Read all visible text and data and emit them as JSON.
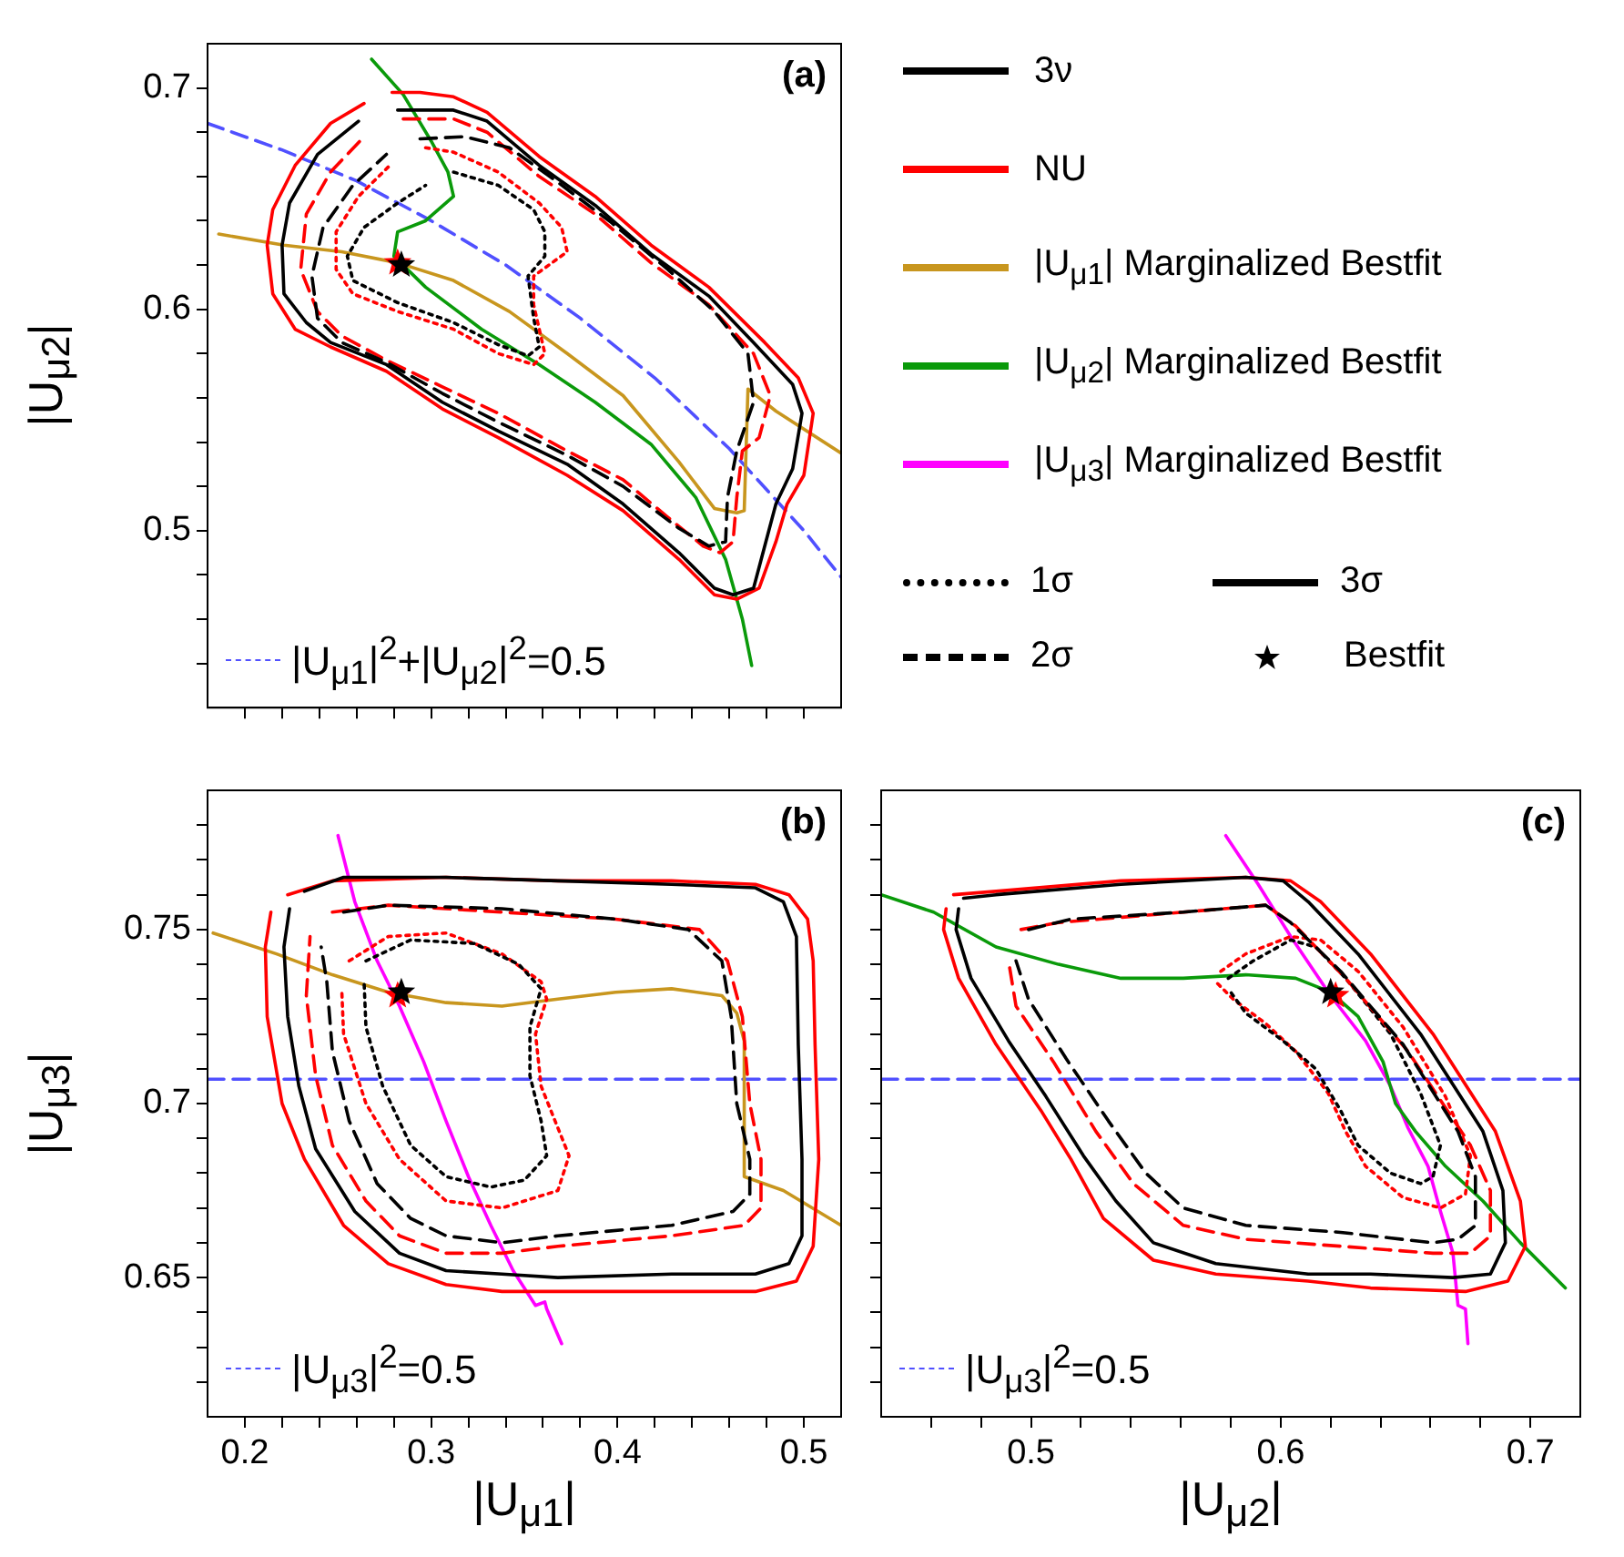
{
  "chart_data": [
    {
      "type": "line",
      "title": "(a)",
      "ylabel": "|U$_{μ2}$|",
      "xlim": [
        0.18,
        0.52
      ],
      "ylim": [
        0.42,
        0.72
      ],
      "xticks": [
        0.2,
        {
          "value": 0.22,
          "label": null
        },
        {
          "value": 0.24,
          "label": null
        },
        {
          "value": 0.26,
          "label": null
        },
        {
          "value": 0.28,
          "label": null
        },
        0.3,
        {
          "value": 0.32,
          "label": null
        },
        {
          "value": 0.34,
          "label": null
        },
        {
          "value": 0.36,
          "label": null
        },
        {
          "value": 0.38,
          "label": null
        },
        0.4,
        {
          "value": 0.42,
          "label": null
        },
        {
          "value": 0.44,
          "label": null
        },
        {
          "value": 0.46,
          "label": null
        },
        {
          "value": 0.48,
          "label": null
        },
        0.5
      ],
      "yticks": [
        {
          "value": 0.44,
          "label": null
        },
        {
          "value": 0.46,
          "label": null
        },
        {
          "value": 0.48,
          "label": null
        },
        0.5,
        {
          "value": 0.52,
          "label": null
        },
        {
          "value": 0.54,
          "label": null
        },
        {
          "value": 0.56,
          "label": null
        },
        {
          "value": 0.58,
          "label": null
        },
        0.6,
        {
          "value": 0.62,
          "label": null
        },
        {
          "value": 0.64,
          "label": null
        },
        {
          "value": 0.66,
          "label": null
        },
        {
          "value": 0.68,
          "label": null
        },
        0.7
      ],
      "tick_labels": "y",
      "legend": "right",
      "annotations": [
        "|U$_{μ1}$|$^{2}$+|U$_{μ2}$|$^{2}$=0.5",
        "1σ",
        "3σ",
        "2σ",
        "Bestfit"
      ],
      "series": [
        {
          "name": "3ν",
          "color": "#000000",
          "line_style": "solid",
          "x": [
            0.282,
            0.312,
            0.33,
            0.358,
            0.388,
            0.418,
            0.449,
            0.473,
            0.494,
            0.499,
            0.494,
            0.485,
            0.479,
            0.473,
            0.462,
            0.452,
            0.433,
            0.403,
            0.373,
            0.336,
            0.306,
            0.276,
            0.246,
            0.233,
            0.221,
            0.22,
            0.224,
            0.239,
            0.261
          ],
          "values": [
            0.69,
            0.69,
            0.685,
            0.665,
            0.647,
            0.625,
            0.606,
            0.585,
            0.566,
            0.553,
            0.528,
            0.512,
            0.493,
            0.474,
            0.471,
            0.474,
            0.49,
            0.512,
            0.53,
            0.545,
            0.558,
            0.575,
            0.585,
            0.594,
            0.607,
            0.629,
            0.648,
            0.67,
            0.685
          ]
        },
        {
          "name": "NU",
          "color": "#ff0000",
          "line_style": "solid",
          "x": [
            0.279,
            0.294,
            0.312,
            0.33,
            0.358,
            0.388,
            0.418,
            0.449,
            0.479,
            0.497,
            0.505,
            0.5,
            0.491,
            0.485,
            0.476,
            0.464,
            0.452,
            0.433,
            0.403,
            0.373,
            0.336,
            0.306,
            0.276,
            0.246,
            0.227,
            0.215,
            0.212,
            0.215,
            0.227,
            0.246,
            0.264
          ],
          "values": [
            0.698,
            0.698,
            0.696,
            0.689,
            0.669,
            0.651,
            0.629,
            0.61,
            0.585,
            0.569,
            0.553,
            0.525,
            0.512,
            0.495,
            0.474,
            0.469,
            0.471,
            0.487,
            0.509,
            0.525,
            0.542,
            0.555,
            0.572,
            0.583,
            0.591,
            0.607,
            0.629,
            0.645,
            0.665,
            0.684,
            0.693
          ]
        },
        {
          "color": "#000000",
          "line_style": "dashed",
          "x": [
            0.294,
            0.318,
            0.342,
            0.367,
            0.397,
            0.427,
            0.452,
            0.47,
            0.473,
            0.464,
            0.459,
            0.458,
            0.449,
            0.433,
            0.403,
            0.373,
            0.336,
            0.306,
            0.276,
            0.252,
            0.239,
            0.236,
            0.242,
            0.258,
            0.276
          ],
          "values": [
            0.677,
            0.678,
            0.673,
            0.658,
            0.639,
            0.618,
            0.599,
            0.58,
            0.558,
            0.536,
            0.515,
            0.495,
            0.493,
            0.501,
            0.52,
            0.534,
            0.549,
            0.562,
            0.576,
            0.585,
            0.596,
            0.615,
            0.637,
            0.656,
            0.67
          ]
        },
        {
          "color": "#ff0000",
          "line_style": "dashed",
          "x": [
            0.285,
            0.312,
            0.33,
            0.358,
            0.388,
            0.418,
            0.449,
            0.473,
            0.482,
            0.476,
            0.467,
            0.464,
            0.462,
            0.455,
            0.446,
            0.427,
            0.403,
            0.373,
            0.336,
            0.306,
            0.276,
            0.252,
            0.239,
            0.23,
            0.233,
            0.246,
            0.264
          ],
          "values": [
            0.686,
            0.686,
            0.68,
            0.66,
            0.643,
            0.621,
            0.602,
            0.58,
            0.561,
            0.542,
            0.536,
            0.515,
            0.495,
            0.49,
            0.493,
            0.506,
            0.523,
            0.536,
            0.553,
            0.565,
            0.577,
            0.588,
            0.599,
            0.618,
            0.643,
            0.662,
            0.678
          ]
        },
        {
          "color": "#000000",
          "line_style": "dotted",
          "x": [
            0.312,
            0.336,
            0.355,
            0.361,
            0.361,
            0.352,
            0.355,
            0.358,
            0.352,
            0.336,
            0.312,
            0.282,
            0.258,
            0.255,
            0.264,
            0.282,
            0.297
          ],
          "values": [
            0.662,
            0.656,
            0.645,
            0.635,
            0.624,
            0.615,
            0.596,
            0.583,
            0.579,
            0.584,
            0.594,
            0.603,
            0.613,
            0.624,
            0.637,
            0.648,
            0.656
          ]
        },
        {
          "color": "#ff0000",
          "line_style": "dotted",
          "x": [
            0.297,
            0.312,
            0.336,
            0.358,
            0.37,
            0.373,
            0.355,
            0.355,
            0.361,
            0.355,
            0.336,
            0.312,
            0.282,
            0.258,
            0.249,
            0.249,
            0.261,
            0.279
          ],
          "values": [
            0.673,
            0.671,
            0.662,
            0.648,
            0.637,
            0.626,
            0.615,
            0.602,
            0.58,
            0.575,
            0.58,
            0.591,
            0.599,
            0.607,
            0.618,
            0.635,
            0.651,
            0.666
          ]
        },
        {
          "name": "|U$_{μ1}$| Marginalized Bestfit",
          "color": "#c8961e",
          "line_style": "solid",
          "x": [
            0.186,
            0.221,
            0.252,
            0.282,
            0.312,
            0.342,
            0.373,
            0.403,
            0.433,
            0.452,
            0.464,
            0.468,
            0.47,
            0.485,
            0.52
          ],
          "values": [
            0.634,
            0.629,
            0.626,
            0.621,
            0.613,
            0.599,
            0.58,
            0.561,
            0.531,
            0.51,
            0.508,
            0.509,
            0.564,
            0.554,
            0.535
          ]
        },
        {
          "name": "|U$_{μ2}$| Marginalized Bestfit",
          "color": "#0a9a0a",
          "line_style": "solid",
          "x": [
            0.268,
            0.285,
            0.3,
            0.309,
            0.312,
            0.297,
            0.282,
            0.28,
            0.297,
            0.327,
            0.358,
            0.388,
            0.418,
            0.442,
            0.458,
            0.467,
            0.472
          ],
          "values": [
            0.713,
            0.697,
            0.676,
            0.662,
            0.651,
            0.64,
            0.635,
            0.624,
            0.61,
            0.591,
            0.575,
            0.558,
            0.539,
            0.515,
            0.487,
            0.46,
            0.439
          ]
        },
        {
          "type": "scatter",
          "marker": "star",
          "color": "#ff0000",
          "x": [
            0.282
          ],
          "values": [
            0.621
          ]
        },
        {
          "type": "scatter",
          "marker": "star",
          "color": "#000000",
          "x": [
            0.284
          ],
          "values": [
            0.62
          ]
        },
        {
          "color": "#5050ff",
          "line_style": "dashed",
          "x": [
            0.18,
            0.22,
            0.26,
            0.3,
            0.34,
            0.38,
            0.42,
            0.46,
            0.5,
            0.52
          ],
          "values": [
            0.684,
            0.672,
            0.658,
            0.64,
            0.62,
            0.596,
            0.569,
            0.537,
            0.5,
            0.479
          ]
        }
      ]
    },
    {
      "type": "line",
      "title": "(b)",
      "xlabel": "|U$_{μ1}$|",
      "ylabel": "|U$_{μ3}$|",
      "xlim": [
        0.18,
        0.52
      ],
      "ylim": [
        0.61,
        0.79
      ],
      "xticks": [
        0.2,
        {
          "value": 0.22,
          "label": null
        },
        {
          "value": 0.24,
          "label": null
        },
        {
          "value": 0.26,
          "label": null
        },
        {
          "value": 0.28,
          "label": null
        },
        0.3,
        {
          "value": 0.32,
          "label": null
        },
        {
          "value": 0.34,
          "label": null
        },
        {
          "value": 0.36,
          "label": null
        },
        {
          "value": 0.38,
          "label": null
        },
        0.4,
        {
          "value": 0.42,
          "label": null
        },
        {
          "value": 0.44,
          "label": null
        },
        {
          "value": 0.46,
          "label": null
        },
        {
          "value": 0.48,
          "label": null
        },
        0.5
      ],
      "yticks": [
        {
          "value": 0.62,
          "label": null
        },
        {
          "value": 0.63,
          "label": null
        },
        {
          "value": 0.64,
          "label": null
        },
        0.65,
        {
          "value": 0.66,
          "label": null
        },
        {
          "value": 0.67,
          "label": null
        },
        {
          "value": 0.68,
          "label": null
        },
        {
          "value": 0.69,
          "label": null
        },
        0.7,
        {
          "value": 0.71,
          "label": null
        },
        {
          "value": 0.72,
          "label": null
        },
        {
          "value": 0.73,
          "label": null
        },
        {
          "value": 0.74,
          "label": null
        },
        0.75,
        {
          "value": 0.76,
          "label": null
        },
        {
          "value": 0.77,
          "label": null
        },
        {
          "value": 0.78,
          "label": null
        }
      ],
      "annotations": [
        "|U$_{μ3}$|$^{2}$=0.5"
      ],
      "series": [
        {
          "color": "#000000",
          "line_style": "solid",
          "x": [
            0.232,
            0.253,
            0.308,
            0.368,
            0.429,
            0.474,
            0.489,
            0.496,
            0.497,
            0.499,
            0.499,
            0.492,
            0.474,
            0.429,
            0.368,
            0.338,
            0.308,
            0.283,
            0.259,
            0.238,
            0.229,
            0.223,
            0.221,
            0.224
          ],
          "values": [
            0.761,
            0.765,
            0.765,
            0.764,
            0.763,
            0.762,
            0.758,
            0.748,
            0.717,
            0.684,
            0.662,
            0.654,
            0.651,
            0.651,
            0.65,
            0.651,
            0.652,
            0.657,
            0.669,
            0.687,
            0.705,
            0.725,
            0.745,
            0.756
          ]
        },
        {
          "color": "#ff0000",
          "line_style": "solid",
          "x": [
            0.223,
            0.247,
            0.308,
            0.368,
            0.429,
            0.474,
            0.492,
            0.502,
            0.505,
            0.506,
            0.508,
            0.505,
            0.496,
            0.474,
            0.429,
            0.368,
            0.338,
            0.308,
            0.277,
            0.253,
            0.232,
            0.22,
            0.212,
            0.211,
            0.214
          ],
          "values": [
            0.76,
            0.764,
            0.765,
            0.764,
            0.764,
            0.763,
            0.76,
            0.753,
            0.741,
            0.717,
            0.684,
            0.659,
            0.649,
            0.646,
            0.646,
            0.646,
            0.646,
            0.648,
            0.654,
            0.665,
            0.684,
            0.7,
            0.725,
            0.745,
            0.755
          ]
        },
        {
          "color": "#000000",
          "line_style": "dashed",
          "x": [
            0.253,
            0.277,
            0.338,
            0.399,
            0.438,
            0.456,
            0.461,
            0.464,
            0.471,
            0.471,
            0.462,
            0.429,
            0.368,
            0.338,
            0.308,
            0.289,
            0.271,
            0.256,
            0.247,
            0.244,
            0.241
          ],
          "values": [
            0.755,
            0.757,
            0.756,
            0.753,
            0.75,
            0.741,
            0.725,
            0.7,
            0.684,
            0.674,
            0.669,
            0.665,
            0.662,
            0.66,
            0.662,
            0.667,
            0.677,
            0.695,
            0.715,
            0.735,
            0.745
          ]
        },
        {
          "color": "#ff0000",
          "line_style": "dashed",
          "x": [
            0.247,
            0.277,
            0.338,
            0.399,
            0.444,
            0.459,
            0.467,
            0.471,
            0.477,
            0.477,
            0.468,
            0.429,
            0.368,
            0.338,
            0.308,
            0.283,
            0.265,
            0.247,
            0.238,
            0.233,
            0.235
          ],
          "values": [
            0.755,
            0.757,
            0.755,
            0.753,
            0.75,
            0.741,
            0.725,
            0.7,
            0.684,
            0.67,
            0.665,
            0.662,
            0.659,
            0.657,
            0.657,
            0.662,
            0.672,
            0.688,
            0.708,
            0.731,
            0.748
          ]
        },
        {
          "color": "#000000",
          "line_style": "dotted",
          "x": [
            0.265,
            0.289,
            0.323,
            0.347,
            0.359,
            0.353,
            0.353,
            0.359,
            0.362,
            0.35,
            0.332,
            0.308,
            0.289,
            0.274,
            0.265,
            0.264
          ],
          "values": [
            0.741,
            0.747,
            0.746,
            0.74,
            0.733,
            0.722,
            0.708,
            0.695,
            0.685,
            0.678,
            0.676,
            0.679,
            0.688,
            0.705,
            0.722,
            0.735
          ]
        },
        {
          "color": "#ff0000",
          "line_style": "dotted",
          "x": [
            0.256,
            0.277,
            0.308,
            0.338,
            0.359,
            0.362,
            0.356,
            0.359,
            0.368,
            0.374,
            0.368,
            0.338,
            0.308,
            0.283,
            0.265,
            0.253,
            0.252
          ],
          "values": [
            0.741,
            0.748,
            0.749,
            0.743,
            0.735,
            0.73,
            0.72,
            0.705,
            0.693,
            0.685,
            0.675,
            0.67,
            0.672,
            0.684,
            0.7,
            0.72,
            0.733
          ]
        },
        {
          "color": "#c8961e",
          "line_style": "solid",
          "x": [
            0.183,
            0.217,
            0.247,
            0.277,
            0.308,
            0.338,
            0.368,
            0.399,
            0.429,
            0.456,
            0.464,
            0.468,
            0.468,
            0.489,
            0.52
          ],
          "values": [
            0.749,
            0.743,
            0.737,
            0.732,
            0.729,
            0.728,
            0.73,
            0.732,
            0.733,
            0.731,
            0.726,
            0.718,
            0.679,
            0.675,
            0.665
          ]
        },
        {
          "name": "|U$_{μ3}$| Marginalized Bestfit",
          "color": "#ff00ff",
          "line_style": "solid",
          "x": [
            0.25,
            0.259,
            0.271,
            0.283,
            0.296,
            0.308,
            0.32,
            0.332,
            0.344,
            0.356,
            0.361,
            0.362,
            0.37
          ],
          "values": [
            0.777,
            0.758,
            0.741,
            0.728,
            0.712,
            0.695,
            0.679,
            0.665,
            0.652,
            0.642,
            0.643,
            0.641,
            0.631
          ]
        },
        {
          "type": "scatter",
          "marker": "star",
          "color": "#ff0000",
          "x": [
            0.282
          ],
          "values": [
            0.731
          ]
        },
        {
          "type": "scatter",
          "marker": "star",
          "color": "#000000",
          "x": [
            0.284
          ],
          "values": [
            0.732
          ]
        },
        {
          "color": "#5050ff",
          "line_style": "dashed",
          "x": [
            0.18,
            0.52
          ],
          "values": [
            0.707,
            0.707
          ]
        }
      ]
    },
    {
      "type": "line",
      "title": "(c)",
      "xlabel": "|U$_{μ2}$|",
      "xlim": [
        0.44,
        0.72
      ],
      "ylim": [
        0.61,
        0.79
      ],
      "xticks": [
        {
          "value": 0.46,
          "label": null
        },
        {
          "value": 0.48,
          "label": null
        },
        0.5,
        {
          "value": 0.52,
          "label": null
        },
        {
          "value": 0.54,
          "label": null
        },
        {
          "value": 0.56,
          "label": null
        },
        {
          "value": 0.58,
          "label": null
        },
        0.6,
        {
          "value": 0.62,
          "label": null
        },
        {
          "value": 0.64,
          "label": null
        },
        {
          "value": 0.66,
          "label": null
        },
        {
          "value": 0.68,
          "label": null
        },
        0.7
      ],
      "yticks": [
        {
          "value": 0.62,
          "label": null
        },
        {
          "value": 0.63,
          "label": null
        },
        {
          "value": 0.64,
          "label": null
        },
        {
          "value": 0.65,
          "label": null
        },
        {
          "value": 0.66,
          "label": null
        },
        {
          "value": 0.67,
          "label": null
        },
        {
          "value": 0.68,
          "label": null
        },
        {
          "value": 0.69,
          "label": null
        },
        {
          "value": 0.7,
          "label": null
        },
        {
          "value": 0.71,
          "label": null
        },
        {
          "value": 0.72,
          "label": null
        },
        {
          "value": 0.73,
          "label": null
        },
        {
          "value": 0.74,
          "label": null
        },
        {
          "value": 0.75,
          "label": null
        },
        {
          "value": 0.76,
          "label": null
        },
        {
          "value": 0.77,
          "label": null
        },
        {
          "value": 0.78,
          "label": null
        }
      ],
      "tick_labels": "x",
      "annotations": [
        "|U$_{μ3}$|$^{2}$=0.5"
      ],
      "series": [
        {
          "color": "#000000",
          "line_style": "solid",
          "x": [
            0.473,
            0.486,
            0.536,
            0.586,
            0.601,
            0.611,
            0.631,
            0.656,
            0.681,
            0.689,
            0.69,
            0.684,
            0.669,
            0.636,
            0.611,
            0.574,
            0.549,
            0.534,
            0.521,
            0.506,
            0.491,
            0.476,
            0.47,
            0.471
          ],
          "values": [
            0.759,
            0.76,
            0.763,
            0.765,
            0.764,
            0.758,
            0.743,
            0.72,
            0.692,
            0.675,
            0.66,
            0.651,
            0.65,
            0.651,
            0.651,
            0.654,
            0.66,
            0.672,
            0.685,
            0.702,
            0.718,
            0.736,
            0.75,
            0.756
          ]
        },
        {
          "color": "#ff0000",
          "line_style": "solid",
          "x": [
            0.469,
            0.486,
            0.536,
            0.586,
            0.604,
            0.616,
            0.636,
            0.661,
            0.686,
            0.696,
            0.698,
            0.691,
            0.674,
            0.636,
            0.611,
            0.574,
            0.549,
            0.529,
            0.516,
            0.504,
            0.486,
            0.471,
            0.465,
            0.466
          ],
          "values": [
            0.76,
            0.761,
            0.764,
            0.765,
            0.764,
            0.758,
            0.743,
            0.72,
            0.692,
            0.672,
            0.659,
            0.649,
            0.646,
            0.647,
            0.649,
            0.651,
            0.655,
            0.667,
            0.684,
            0.698,
            0.717,
            0.736,
            0.75,
            0.756
          ]
        },
        {
          "color": "#000000",
          "line_style": "dashed",
          "x": [
            0.499,
            0.516,
            0.561,
            0.594,
            0.604,
            0.624,
            0.649,
            0.671,
            0.678,
            0.678,
            0.671,
            0.661,
            0.624,
            0.586,
            0.561,
            0.546,
            0.531,
            0.514,
            0.499,
            0.494
          ],
          "values": [
            0.75,
            0.753,
            0.755,
            0.757,
            0.752,
            0.738,
            0.717,
            0.692,
            0.679,
            0.665,
            0.661,
            0.66,
            0.663,
            0.665,
            0.67,
            0.68,
            0.695,
            0.713,
            0.73,
            0.741
          ]
        },
        {
          "color": "#ff0000",
          "line_style": "dashed",
          "x": [
            0.496,
            0.511,
            0.561,
            0.594,
            0.606,
            0.626,
            0.651,
            0.676,
            0.684,
            0.684,
            0.676,
            0.661,
            0.624,
            0.586,
            0.561,
            0.541,
            0.526,
            0.509,
            0.494,
            0.491
          ],
          "values": [
            0.75,
            0.752,
            0.755,
            0.757,
            0.751,
            0.736,
            0.715,
            0.688,
            0.675,
            0.662,
            0.657,
            0.657,
            0.659,
            0.661,
            0.665,
            0.677,
            0.692,
            0.712,
            0.728,
            0.741
          ]
        },
        {
          "color": "#000000",
          "line_style": "dotted",
          "x": [
            0.579,
            0.589,
            0.604,
            0.614,
            0.626,
            0.644,
            0.656,
            0.664,
            0.661,
            0.656,
            0.644,
            0.631,
            0.624,
            0.614,
            0.601,
            0.586,
            0.58
          ],
          "values": [
            0.736,
            0.741,
            0.747,
            0.745,
            0.736,
            0.72,
            0.703,
            0.688,
            0.679,
            0.677,
            0.68,
            0.688,
            0.698,
            0.71,
            0.718,
            0.726,
            0.732
          ]
        },
        {
          "color": "#ff0000",
          "line_style": "dotted",
          "x": [
            0.576,
            0.586,
            0.604,
            0.616,
            0.631,
            0.649,
            0.666,
            0.676,
            0.674,
            0.664,
            0.649,
            0.634,
            0.626,
            0.619,
            0.606,
            0.594,
            0.581,
            0.574
          ],
          "values": [
            0.738,
            0.743,
            0.748,
            0.747,
            0.738,
            0.722,
            0.702,
            0.685,
            0.674,
            0.67,
            0.673,
            0.682,
            0.692,
            0.703,
            0.715,
            0.723,
            0.73,
            0.735
          ]
        },
        {
          "color": "#0a9a0a",
          "line_style": "solid",
          "x": [
            0.44,
            0.461,
            0.486,
            0.511,
            0.536,
            0.561,
            0.586,
            0.606,
            0.62,
            0.631,
            0.641,
            0.646,
            0.654,
            0.666,
            0.681,
            0.696,
            0.714
          ],
          "values": [
            0.76,
            0.755,
            0.745,
            0.74,
            0.736,
            0.736,
            0.737,
            0.736,
            0.732,
            0.725,
            0.712,
            0.7,
            0.692,
            0.682,
            0.672,
            0.66,
            0.647
          ]
        },
        {
          "color": "#ff00ff",
          "line_style": "solid",
          "x": [
            0.578,
            0.591,
            0.604,
            0.62,
            0.634,
            0.644,
            0.651,
            0.659,
            0.664,
            0.669,
            0.671,
            0.674,
            0.675
          ],
          "values": [
            0.777,
            0.763,
            0.748,
            0.731,
            0.718,
            0.705,
            0.693,
            0.682,
            0.669,
            0.657,
            0.642,
            0.641,
            0.631
          ]
        },
        {
          "type": "scatter",
          "marker": "star",
          "color": "#ff0000",
          "x": [
            0.622
          ],
          "values": [
            0.731
          ]
        },
        {
          "type": "scatter",
          "marker": "star",
          "color": "#000000",
          "x": [
            0.62
          ],
          "values": [
            0.732
          ]
        },
        {
          "color": "#5050ff",
          "line_style": "dashed",
          "x": [
            0.44,
            0.72
          ],
          "values": [
            0.707,
            0.707
          ]
        }
      ]
    }
  ]
}
